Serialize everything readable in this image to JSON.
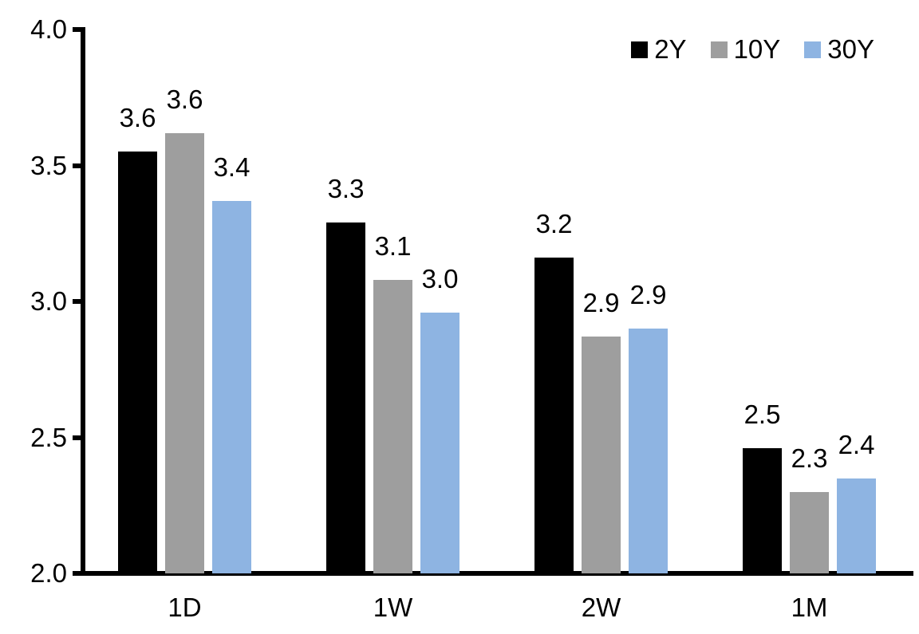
{
  "chart_data": {
    "type": "bar",
    "title": "",
    "categories": [
      "1D",
      "1W",
      "2W",
      "1M"
    ],
    "series": [
      {
        "name": "2Y",
        "color": "#000000",
        "values": [
          3.55,
          3.29,
          3.16,
          2.46
        ],
        "labels": [
          "3.6",
          "3.3",
          "3.2",
          "2.5"
        ]
      },
      {
        "name": "10Y",
        "color": "#9E9E9E",
        "values": [
          3.62,
          3.08,
          2.87,
          2.3
        ],
        "labels": [
          "3.6",
          "3.1",
          "2.9",
          "2.3"
        ]
      },
      {
        "name": "30Y",
        "color": "#8EB4E2",
        "values": [
          3.37,
          2.96,
          2.9,
          2.35
        ],
        "labels": [
          "3.4",
          "3.0",
          "2.9",
          "2.4"
        ]
      }
    ],
    "ylim": [
      2.0,
      4.0
    ],
    "yticks": [
      "2.0",
      "2.5",
      "3.0",
      "3.5",
      "4.0"
    ],
    "grid": false,
    "legend_position": "top-right",
    "axis_color": "#000000",
    "background_color": "#FFFFFF",
    "text_color": "#000000"
  }
}
